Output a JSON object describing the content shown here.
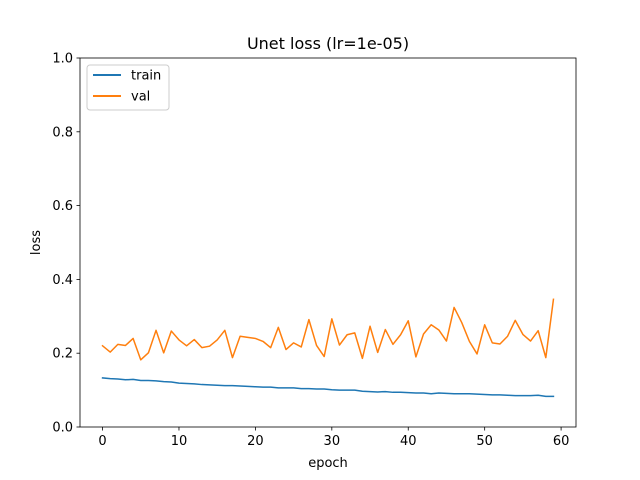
{
  "chart_data": {
    "type": "line",
    "title": "Unet loss (lr=1e-05)",
    "xlabel": "epoch",
    "ylabel": "loss",
    "xlim": [
      -2.95,
      61.95
    ],
    "ylim": [
      0.0,
      1.0
    ],
    "xticks": [
      0,
      10,
      20,
      30,
      40,
      50,
      60
    ],
    "yticks": [
      "0.0",
      "0.2",
      "0.4",
      "0.6",
      "0.8",
      "1.0"
    ],
    "grid": false,
    "legend_position": "top-left",
    "series": [
      {
        "name": "train",
        "color": "#1f77b4",
        "x": [
          0,
          1,
          2,
          3,
          4,
          5,
          6,
          7,
          8,
          9,
          10,
          11,
          12,
          13,
          14,
          15,
          16,
          17,
          18,
          19,
          20,
          21,
          22,
          23,
          24,
          25,
          26,
          27,
          28,
          29,
          30,
          31,
          32,
          33,
          34,
          35,
          36,
          37,
          38,
          39,
          40,
          41,
          42,
          43,
          44,
          45,
          46,
          47,
          48,
          49,
          50,
          51,
          52,
          53,
          54,
          55,
          56,
          57,
          58,
          59
        ],
        "values": [
          0.133,
          0.131,
          0.13,
          0.128,
          0.129,
          0.126,
          0.126,
          0.125,
          0.123,
          0.122,
          0.119,
          0.118,
          0.117,
          0.115,
          0.114,
          0.113,
          0.112,
          0.112,
          0.111,
          0.11,
          0.109,
          0.108,
          0.108,
          0.106,
          0.106,
          0.106,
          0.104,
          0.104,
          0.103,
          0.103,
          0.101,
          0.1,
          0.1,
          0.1,
          0.097,
          0.096,
          0.095,
          0.096,
          0.094,
          0.094,
          0.093,
          0.092,
          0.092,
          0.09,
          0.092,
          0.091,
          0.09,
          0.09,
          0.09,
          0.089,
          0.088,
          0.087,
          0.087,
          0.086,
          0.085,
          0.085,
          0.085,
          0.086,
          0.083,
          0.083
        ]
      },
      {
        "name": "val",
        "color": "#ff7f0e",
        "x": [
          0,
          1,
          2,
          3,
          4,
          5,
          6,
          7,
          8,
          9,
          10,
          11,
          12,
          13,
          14,
          15,
          16,
          17,
          18,
          19,
          20,
          21,
          22,
          23,
          24,
          25,
          26,
          27,
          28,
          29,
          30,
          31,
          32,
          33,
          34,
          35,
          36,
          37,
          38,
          39,
          40,
          41,
          42,
          43,
          44,
          45,
          46,
          47,
          48,
          49,
          50,
          51,
          52,
          53,
          54,
          55,
          56,
          57,
          58,
          59
        ],
        "values": [
          0.22,
          0.203,
          0.224,
          0.221,
          0.24,
          0.182,
          0.201,
          0.262,
          0.201,
          0.26,
          0.236,
          0.22,
          0.237,
          0.215,
          0.219,
          0.236,
          0.262,
          0.188,
          0.246,
          0.243,
          0.24,
          0.232,
          0.215,
          0.27,
          0.21,
          0.228,
          0.217,
          0.291,
          0.221,
          0.191,
          0.293,
          0.222,
          0.25,
          0.255,
          0.186,
          0.273,
          0.202,
          0.264,
          0.224,
          0.25,
          0.288,
          0.19,
          0.252,
          0.277,
          0.263,
          0.233,
          0.324,
          0.283,
          0.232,
          0.198,
          0.277,
          0.228,
          0.225,
          0.246,
          0.289,
          0.251,
          0.233,
          0.261,
          0.188,
          0.346
        ]
      }
    ]
  }
}
